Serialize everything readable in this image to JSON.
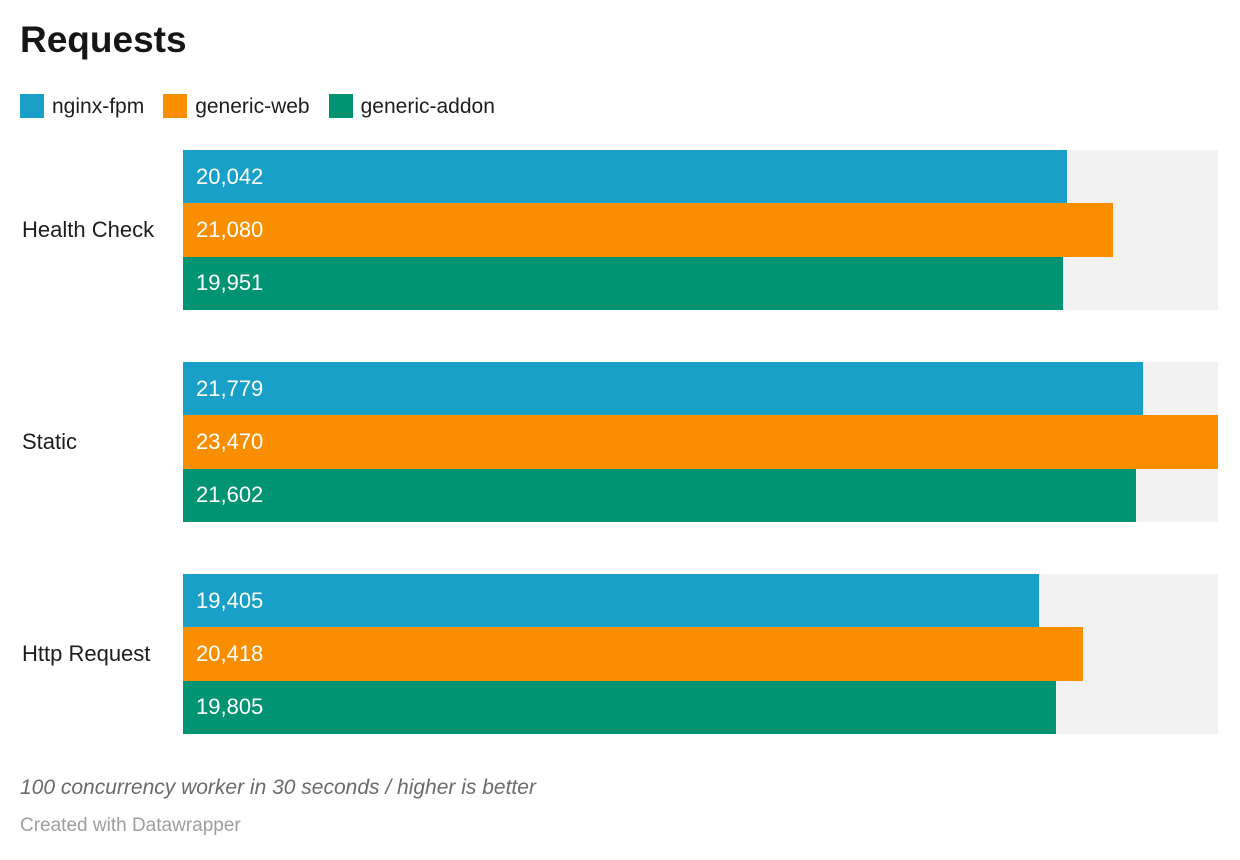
{
  "title": "Requests",
  "legend": {
    "items": [
      {
        "label": "nginx-fpm",
        "color": "#18a0c8"
      },
      {
        "label": "generic-web",
        "color": "#f98f00"
      },
      {
        "label": "generic-addon",
        "color": "#009473"
      }
    ]
  },
  "chart_data": {
    "type": "bar",
    "orientation": "horizontal",
    "grouped": true,
    "title": "Requests",
    "categories": [
      "Health Check",
      "Static",
      "Http Request"
    ],
    "series": [
      {
        "name": "nginx-fpm",
        "color": "#18a0c8",
        "values": [
          20042,
          21779,
          19405
        ],
        "labels": [
          "20,042",
          "21,779",
          "19,405"
        ]
      },
      {
        "name": "generic-web",
        "color": "#f98f00",
        "values": [
          21080,
          23470,
          20418
        ],
        "labels": [
          "21,080",
          "23,470",
          "20,418"
        ]
      },
      {
        "name": "generic-addon",
        "color": "#009473",
        "values": [
          19951,
          21602,
          19805
        ],
        "labels": [
          "19,951",
          "21,602",
          "19,805"
        ]
      }
    ],
    "xlim": [
      0,
      23470
    ],
    "track_color": "#f2f2f2",
    "value_label_color": "#ffffff",
    "grid": false,
    "legend_position": "top"
  },
  "footer": {
    "note": "100 concurrency worker in 30 seconds / higher is better",
    "credit": "Created with Datawrapper"
  }
}
